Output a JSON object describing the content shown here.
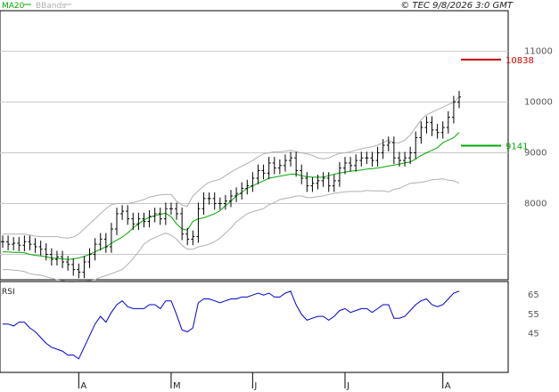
{
  "header": {
    "ma_label": "MA20",
    "bb_label": "BBands",
    "copyright": "© TEC 9/8/2026 3:0 GMT",
    "rsi_label": "RSI"
  },
  "colors": {
    "ma": "#00aa00",
    "bands": "#b0b0b0",
    "bars": "#000000",
    "rsi": "#0000cc",
    "resistance": "#cc0000",
    "support": "#00aa00",
    "grid": "#c8c8c8"
  },
  "chart_data": [
    {
      "type": "ohlc",
      "title": "",
      "ylim": [
        6500,
        11800
      ],
      "yticks": [
        8000,
        9000,
        10000
      ],
      "ytick_labels": [
        "8000",
        "9000",
        "10000"
      ],
      "partial_top_tick": {
        "value": 11000,
        "label": "11000"
      },
      "xticks": [
        "A",
        "M",
        "J",
        "J",
        "A"
      ],
      "xtick_index": [
        14,
        31,
        46,
        63,
        81
      ],
      "annotations": [
        {
          "value": 10838,
          "label": "10838",
          "color": "#cc0000"
        },
        {
          "value": 9141,
          "label": "9141",
          "color": "#00aa00"
        }
      ],
      "close": [
        7250,
        7200,
        7220,
        7180,
        7250,
        7200,
        7150,
        7100,
        7000,
        6900,
        6950,
        6850,
        6800,
        6700,
        6650,
        6850,
        7000,
        7200,
        7300,
        7150,
        7500,
        7800,
        7850,
        7700,
        7600,
        7700,
        7650,
        7750,
        7800,
        7700,
        7900,
        7900,
        7800,
        7400,
        7300,
        7350,
        7900,
        8100,
        8100,
        8000,
        8000,
        8050,
        8150,
        8200,
        8300,
        8350,
        8500,
        8650,
        8600,
        8800,
        8700,
        8750,
        8850,
        8900,
        8650,
        8500,
        8350,
        8400,
        8450,
        8500,
        8350,
        8450,
        8700,
        8800,
        8750,
        8850,
        8900,
        8900,
        8850,
        9000,
        9150,
        9200,
        8900,
        8850,
        8900,
        9000,
        9300,
        9500,
        9600,
        9450,
        9400,
        9500,
        9700,
        10000,
        10100
      ],
      "ma20": [
        7050,
        7050,
        7040,
        7040,
        7030,
        7000,
        6980,
        6970,
        6950,
        6930,
        6920,
        6910,
        6900,
        6910,
        6930,
        6960,
        7000,
        7050,
        7100,
        7150,
        7220,
        7280,
        7340,
        7420,
        7520,
        7600,
        7680,
        7730,
        7760,
        7790,
        7810,
        7740,
        7600,
        7500,
        7480,
        7650,
        7700,
        7720,
        7760,
        7800,
        7860,
        7960,
        8050,
        8150,
        8220,
        8300,
        8350,
        8400,
        8450,
        8500,
        8520,
        8540,
        8560,
        8580,
        8580,
        8550,
        8530,
        8520,
        8520,
        8520,
        8550,
        8580,
        8600,
        8620,
        8640,
        8650,
        8660,
        8680,
        8690,
        8700,
        8720,
        8740,
        8760,
        8780,
        8800,
        8820,
        8880,
        8950,
        9000,
        9050,
        9100,
        9200,
        9250,
        9300,
        9400
      ],
      "bb_upper": [
        7400,
        7400,
        7400,
        7400,
        7400,
        7380,
        7360,
        7350,
        7350,
        7350,
        7350,
        7330,
        7320,
        7340,
        7400,
        7500,
        7600,
        7700,
        7800,
        7900,
        7980,
        8000,
        8000,
        8000,
        8020,
        8050,
        8080,
        8130,
        8150,
        8170,
        8180,
        8180,
        8050,
        7970,
        7950,
        8150,
        8250,
        8350,
        8420,
        8450,
        8480,
        8550,
        8620,
        8680,
        8740,
        8790,
        8850,
        8920,
        8980,
        9000,
        9020,
        9020,
        9030,
        9050,
        9020,
        9000,
        8980,
        8950,
        8900,
        8880,
        8900,
        8950,
        8990,
        9000,
        9020,
        9050,
        9080,
        9100,
        9120,
        9150,
        9200,
        9250,
        9200,
        9200,
        9250,
        9350,
        9500,
        9650,
        9750,
        9800,
        9850,
        9900,
        9950,
        10000,
        10100
      ],
      "bb_lower": [
        6700,
        6700,
        6690,
        6680,
        6660,
        6620,
        6600,
        6590,
        6560,
        6530,
        6500,
        6480,
        6460,
        6460,
        6470,
        6470,
        6480,
        6500,
        6550,
        6580,
        6620,
        6660,
        6700,
        6800,
        6920,
        7050,
        7200,
        7280,
        7330,
        7380,
        7420,
        7380,
        7300,
        7180,
        7100,
        7100,
        7150,
        7170,
        7200,
        7250,
        7320,
        7420,
        7520,
        7640,
        7720,
        7800,
        7840,
        7870,
        7900,
        7980,
        8020,
        8080,
        8100,
        8120,
        8150,
        8150,
        8120,
        8120,
        8140,
        8150,
        8180,
        8200,
        8220,
        8230,
        8240,
        8240,
        8240,
        8260,
        8250,
        8250,
        8250,
        8230,
        8280,
        8300,
        8350,
        8400,
        8410,
        8420,
        8440,
        8470,
        8480,
        8490,
        8460,
        8450,
        8400
      ]
    },
    {
      "type": "line",
      "title": "RSI",
      "ylim": [
        25,
        72
      ],
      "yticks": [
        65,
        55,
        45
      ],
      "ytick_labels": [
        "65",
        "55",
        "45"
      ],
      "values": [
        50,
        50,
        49,
        51,
        51,
        48,
        46,
        43,
        40,
        38,
        37,
        36,
        34,
        34,
        32,
        38,
        44,
        50,
        54,
        51,
        56,
        60,
        62,
        59,
        58,
        58,
        58,
        60,
        60,
        58,
        62,
        62,
        55,
        47,
        46,
        48,
        61,
        63,
        63,
        62,
        61,
        62,
        63,
        63,
        64,
        64,
        65,
        66,
        65,
        66,
        64,
        64,
        66,
        67,
        60,
        55,
        52,
        53,
        54,
        54,
        52,
        54,
        57,
        58,
        56,
        57,
        58,
        58,
        56,
        58,
        60,
        60,
        53,
        53,
        54,
        57,
        60,
        62,
        63,
        60,
        59,
        60,
        63,
        66,
        67
      ]
    }
  ]
}
